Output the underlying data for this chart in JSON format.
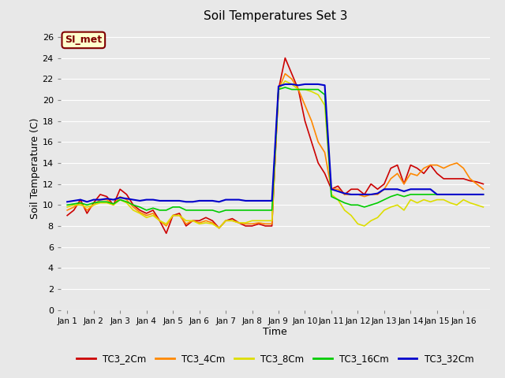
{
  "title": "Soil Temperatures Set 3",
  "xlabel": "Time",
  "ylabel": "Soil Temperature (C)",
  "ylim": [
    0,
    27
  ],
  "yticks": [
    0,
    2,
    4,
    6,
    8,
    10,
    12,
    14,
    16,
    18,
    20,
    22,
    24,
    26
  ],
  "bg_color": "#e8e8e8",
  "annotation_text": "SI_met",
  "annotation_bg": "#ffffcc",
  "annotation_border": "#800000",
  "series_names": [
    "TC3_2Cm",
    "TC3_4Cm",
    "TC3_8Cm",
    "TC3_16Cm",
    "TC3_32Cm"
  ],
  "series_colors": [
    "#cc0000",
    "#ff8800",
    "#dddd00",
    "#00cc00",
    "#0000cc"
  ],
  "series_lw": [
    1.2,
    1.2,
    1.2,
    1.2,
    1.5
  ],
  "x_labels": [
    "Jan 1",
    "Jan 2",
    "Jan 3",
    "Jan 4",
    "Jan 5",
    "Jan 6",
    "Jan 7",
    "Jan 8",
    "Jan 9",
    "Jan 10",
    "Jan 11",
    "Jan 12",
    "Jan 13",
    "Jan 14",
    "Jan 15",
    "Jan 16"
  ],
  "x_tick_positions": [
    0,
    4,
    8,
    12,
    16,
    20,
    24,
    28,
    32,
    36,
    40,
    44,
    48,
    52,
    56,
    60
  ],
  "TC3_2Cm": [
    9.0,
    9.5,
    10.5,
    9.2,
    10.2,
    11.0,
    10.8,
    10.0,
    11.5,
    11.0,
    10.0,
    9.5,
    9.2,
    9.5,
    8.5,
    7.3,
    9.0,
    9.2,
    8.0,
    8.5,
    8.5,
    8.8,
    8.5,
    7.8,
    8.5,
    8.7,
    8.3,
    8.0,
    8.0,
    8.2,
    8.0,
    8.0,
    21.0,
    24.0,
    22.5,
    21.0,
    18.0,
    16.0,
    14.0,
    13.0,
    11.5,
    11.8,
    11.0,
    11.5,
    11.5,
    11.0,
    12.0,
    11.5,
    12.0,
    13.5,
    13.8,
    12.0,
    13.8,
    13.5,
    13.0,
    13.8,
    13.0,
    12.5,
    12.5,
    12.5,
    12.5,
    12.3,
    12.2,
    12.0
  ],
  "TC3_4Cm": [
    9.5,
    9.8,
    10.2,
    9.5,
    10.0,
    10.5,
    10.5,
    10.0,
    10.8,
    10.5,
    9.8,
    9.3,
    9.0,
    9.2,
    8.5,
    8.0,
    9.0,
    9.0,
    8.2,
    8.5,
    8.3,
    8.5,
    8.3,
    7.8,
    8.5,
    8.5,
    8.3,
    8.2,
    8.2,
    8.3,
    8.2,
    8.2,
    21.0,
    22.5,
    22.0,
    21.0,
    19.5,
    18.0,
    16.0,
    15.0,
    11.5,
    11.5,
    11.0,
    11.0,
    11.0,
    10.8,
    11.0,
    11.0,
    11.5,
    12.5,
    13.0,
    12.0,
    13.0,
    12.8,
    13.5,
    13.8,
    13.8,
    13.5,
    13.8,
    14.0,
    13.5,
    12.5,
    12.0,
    11.5
  ],
  "TC3_8Cm": [
    9.8,
    10.0,
    10.0,
    9.8,
    10.0,
    10.2,
    10.2,
    10.0,
    10.5,
    10.2,
    9.5,
    9.2,
    8.8,
    9.0,
    8.5,
    8.2,
    9.0,
    9.0,
    8.5,
    8.5,
    8.2,
    8.3,
    8.2,
    7.8,
    8.5,
    8.5,
    8.3,
    8.3,
    8.5,
    8.5,
    8.5,
    8.5,
    21.0,
    21.8,
    21.5,
    21.0,
    21.0,
    20.8,
    20.5,
    19.5,
    11.0,
    10.5,
    9.5,
    9.0,
    8.2,
    8.0,
    8.5,
    8.8,
    9.5,
    9.8,
    10.0,
    9.5,
    10.5,
    10.2,
    10.5,
    10.3,
    10.5,
    10.5,
    10.2,
    10.0,
    10.5,
    10.2,
    10.0,
    9.8
  ],
  "TC3_16Cm": [
    10.0,
    10.1,
    10.2,
    10.0,
    10.2,
    10.3,
    10.3,
    10.1,
    10.5,
    10.3,
    10.0,
    9.8,
    9.5,
    9.7,
    9.5,
    9.5,
    9.8,
    9.8,
    9.5,
    9.5,
    9.5,
    9.5,
    9.5,
    9.3,
    9.5,
    9.5,
    9.5,
    9.5,
    9.5,
    9.5,
    9.5,
    9.5,
    21.0,
    21.2,
    21.0,
    21.0,
    21.0,
    21.0,
    21.0,
    20.5,
    10.8,
    10.5,
    10.2,
    10.0,
    10.0,
    9.8,
    10.0,
    10.2,
    10.5,
    10.8,
    11.0,
    10.8,
    11.0,
    11.0,
    11.0,
    11.0,
    11.0,
    11.0,
    11.0,
    11.0,
    11.0,
    11.0,
    11.0,
    11.0
  ],
  "TC3_32Cm": [
    10.3,
    10.4,
    10.5,
    10.3,
    10.5,
    10.5,
    10.6,
    10.5,
    10.7,
    10.6,
    10.5,
    10.4,
    10.5,
    10.5,
    10.4,
    10.4,
    10.4,
    10.4,
    10.3,
    10.3,
    10.4,
    10.4,
    10.4,
    10.3,
    10.5,
    10.5,
    10.5,
    10.4,
    10.4,
    10.4,
    10.4,
    10.4,
    21.3,
    21.5,
    21.5,
    21.4,
    21.5,
    21.5,
    21.5,
    21.4,
    11.5,
    11.3,
    11.1,
    11.0,
    11.0,
    11.0,
    11.0,
    11.1,
    11.5,
    11.5,
    11.5,
    11.3,
    11.5,
    11.5,
    11.5,
    11.5,
    11.0,
    11.0,
    11.0,
    11.0,
    11.0,
    11.0,
    11.0,
    11.0
  ]
}
